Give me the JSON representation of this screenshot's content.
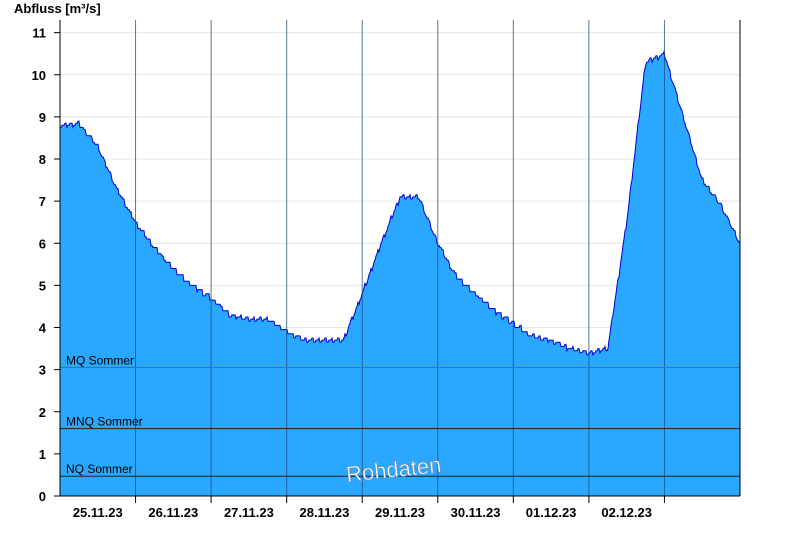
{
  "chart_data": {
    "type": "area",
    "ylabel": "Abfluss [m³/s]",
    "ylim": [
      0,
      11.3
    ],
    "yticks": [
      0,
      1,
      2,
      3,
      4,
      5,
      6,
      7,
      8,
      9,
      10,
      11
    ],
    "xlim": [
      "24.11.23 12:00",
      "03.12.23 12:00"
    ],
    "xticks": [
      "25.11.23",
      "26.11.23",
      "27.11.23",
      "28.11.23",
      "29.11.23",
      "30.11.23",
      "01.12.23",
      "02.12.23"
    ],
    "grid": true,
    "watermark": "Rohdaten",
    "colors": {
      "fill": "#2aa8ff",
      "line": "#0000cc",
      "mq": "#2e8b57",
      "mnq": "#222222",
      "nq": "#222222"
    },
    "reference_lines": [
      {
        "name": "MQ Sommer",
        "value": 3.05
      },
      {
        "name": "MNQ Sommer",
        "value": 1.6
      },
      {
        "name": "NQ Sommer",
        "value": 0.47
      }
    ],
    "series": [
      {
        "x": [
          "24.11.23 12:00",
          "24.11.23 18:00",
          "25.11.23 00:00",
          "25.11.23 06:00",
          "25.11.23 12:00",
          "25.11.23 18:00",
          "26.11.23 00:00",
          "26.11.23 06:00",
          "26.11.23 12:00",
          "26.11.23 18:00",
          "27.11.23 00:00",
          "27.11.23 06:00",
          "27.11.23 12:00",
          "27.11.23 18:00",
          "28.11.23 00:00",
          "28.11.23 06:00",
          "28.11.23 12:00",
          "28.11.23 18:00",
          "29.11.23 00:00",
          "29.11.23 06:00",
          "29.11.23 12:00",
          "29.11.23 18:00",
          "30.11.23 00:00",
          "30.11.23 06:00",
          "30.11.23 12:00",
          "30.11.23 18:00",
          "01.12.23 00:00",
          "01.12.23 06:00",
          "01.12.23 12:00",
          "01.12.23 18:00",
          "02.12.23 00:00",
          "02.12.23 06:00",
          "02.12.23 12:00",
          "02.12.23 18:00",
          "03.12.23 00:00",
          "03.12.23 06:00",
          "03.12.23 12:00"
        ],
        "values": [
          8.8,
          8.85,
          8.3,
          7.3,
          6.5,
          5.9,
          5.4,
          5.0,
          4.7,
          4.3,
          4.2,
          4.2,
          3.9,
          3.7,
          3.7,
          3.7,
          4.8,
          6.0,
          7.1,
          7.1,
          6.0,
          5.2,
          4.8,
          4.4,
          4.1,
          3.8,
          3.7,
          3.5,
          3.4,
          3.5,
          6.5,
          10.3,
          10.5,
          9.0,
          7.5,
          6.9,
          6.0
        ]
      }
    ]
  }
}
